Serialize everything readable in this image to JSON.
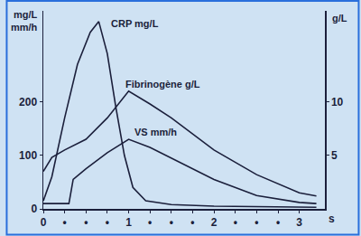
{
  "chart_data": {
    "type": "line",
    "y_label": "mg/L\nmm/h",
    "y2_label": "g/L",
    "x_label": "s",
    "xlim": [
      0,
      3.3
    ],
    "xticks": [
      0,
      {
        "value": 0.25,
        "label": "•"
      },
      {
        "value": 0.5,
        "label": "•"
      },
      {
        "value": 0.75,
        "label": "•"
      },
      1,
      {
        "value": 1.25,
        "label": "•"
      },
      {
        "value": 1.5,
        "label": "•"
      },
      {
        "value": 1.75,
        "label": "•"
      },
      2,
      {
        "value": 2.25,
        "label": "•"
      },
      {
        "value": 2.5,
        "label": "•"
      },
      {
        "value": 2.75,
        "label": "•"
      },
      3
    ],
    "ylim": [
      0,
      370
    ],
    "yticks": [
      0,
      100,
      200
    ],
    "y2lim": [
      0,
      18.5
    ],
    "y2ticks": [
      5,
      10
    ],
    "grid": false,
    "series": [
      {
        "name": "CRP mg/L",
        "color": "#1b1f3b",
        "line_style": "solid",
        "x": [
          0,
          0.1,
          0.25,
          0.4,
          0.55,
          0.65,
          0.75,
          0.85,
          0.95,
          1.05,
          1.2,
          1.5,
          2,
          3.2
        ],
        "values": [
          15,
          60,
          170,
          270,
          330,
          350,
          290,
          190,
          100,
          40,
          15,
          8,
          5,
          3
        ]
      },
      {
        "name": "Fibrinogène g/L",
        "color": "#1b1f3b",
        "line_style": "solid",
        "axis": "y2",
        "x": [
          0,
          0.1,
          0.25,
          0.5,
          0.75,
          1,
          1.25,
          1.5,
          2,
          2.5,
          3,
          3.2
        ],
        "values": [
          3.5,
          4.8,
          5.5,
          6.5,
          8.5,
          11,
          9.8,
          8.5,
          5.5,
          3.2,
          1.5,
          1.2
        ]
      },
      {
        "name": "VS mm/h",
        "color": "#1b1f3b",
        "line_style": "solid",
        "x": [
          0,
          0.3,
          0.35,
          0.5,
          0.75,
          1,
          1.25,
          1.5,
          2,
          2.5,
          3,
          3.2
        ],
        "values": [
          10,
          10,
          55,
          75,
          105,
          130,
          115,
          95,
          55,
          25,
          12,
          10
        ]
      }
    ]
  }
}
